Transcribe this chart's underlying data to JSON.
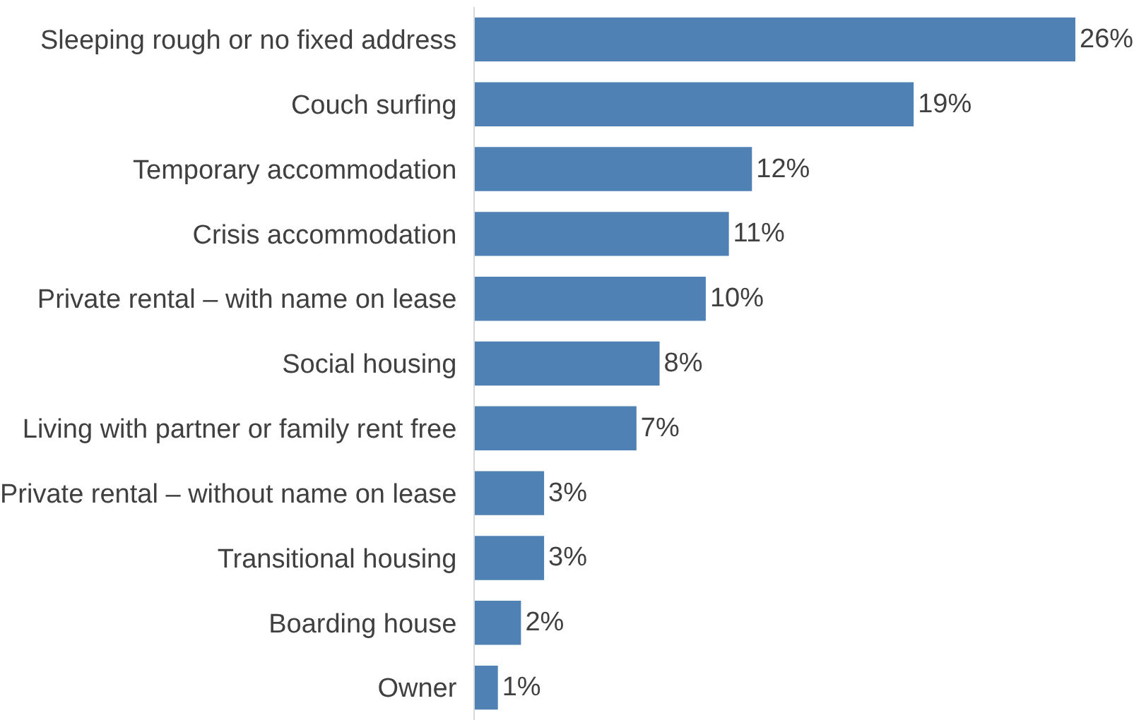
{
  "chart_data": {
    "type": "bar",
    "orientation": "horizontal",
    "categories": [
      "Sleeping rough or no fixed address",
      "Couch surfing",
      "Temporary accommodation",
      "Crisis accommodation",
      "Private rental – with name on lease",
      "Social housing",
      "Living with partner or family rent free",
      "Private rental – without name on lease",
      "Transitional housing",
      "Boarding house",
      "Owner"
    ],
    "values": [
      26,
      19,
      12,
      11,
      10,
      8,
      7,
      3,
      3,
      2,
      1
    ],
    "value_labels": [
      "26%",
      "19%",
      "12%",
      "11%",
      "10%",
      "8%",
      "7%",
      "3%",
      "3%",
      "2%",
      "1%"
    ],
    "color": "#4f81b5",
    "xlim": [
      0,
      26
    ],
    "tick_labels": "y"
  }
}
